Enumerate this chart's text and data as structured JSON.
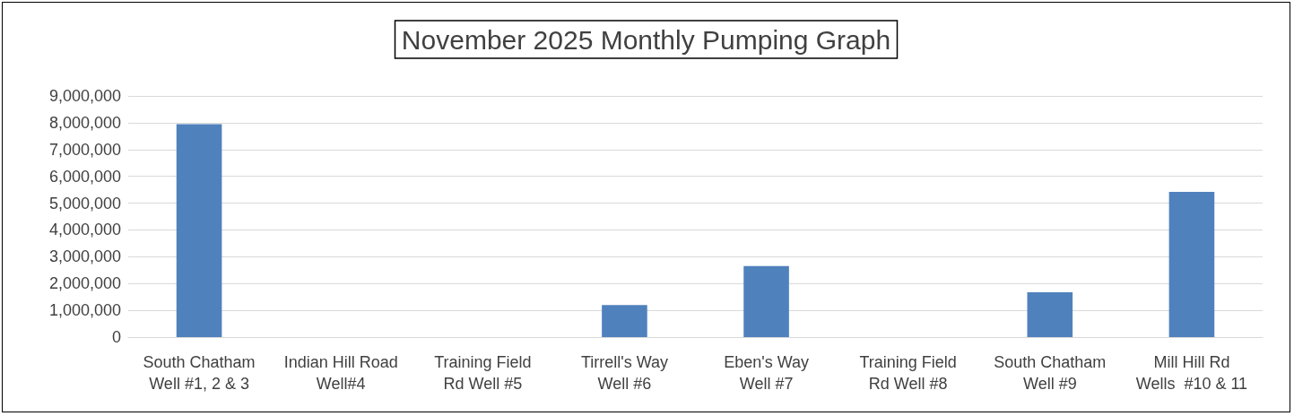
{
  "chart_data": {
    "type": "bar",
    "title": "November 2025 Monthly Pumping Graph",
    "categories": [
      "South Chatham\nWell #1, 2 & 3",
      "Indian Hill Road\nWell#4",
      "Training Field\nRd Well #5",
      "Tirrell's Way\nWell #6",
      "Eben's Way\nWell #7",
      "Training Field\nRd Well #8",
      "South Chatham\nWell #9",
      "Mill Hill Rd\nWells  #10 & 11"
    ],
    "values": [
      7950000,
      0,
      0,
      1200000,
      2650000,
      0,
      1670000,
      5420000
    ],
    "color": "#4f81bd",
    "ylim": [
      0,
      9000000
    ],
    "yticks": [
      0,
      {
        "value": 1000000,
        "label": "1,000,000"
      },
      {
        "value": 2000000,
        "label": "2,000,000"
      },
      {
        "value": 3000000,
        "label": "3,000,000"
      },
      {
        "value": 4000000,
        "label": "4,000,000"
      },
      {
        "value": 5000000,
        "label": "5,000,000"
      },
      {
        "value": 6000000,
        "label": "6,000,000"
      },
      {
        "value": 7000000,
        "label": "7,000,000"
      },
      {
        "value": 8000000,
        "label": "8,000,000"
      },
      {
        "value": 9000000,
        "label": "9,000,000"
      }
    ],
    "grid": "y"
  }
}
